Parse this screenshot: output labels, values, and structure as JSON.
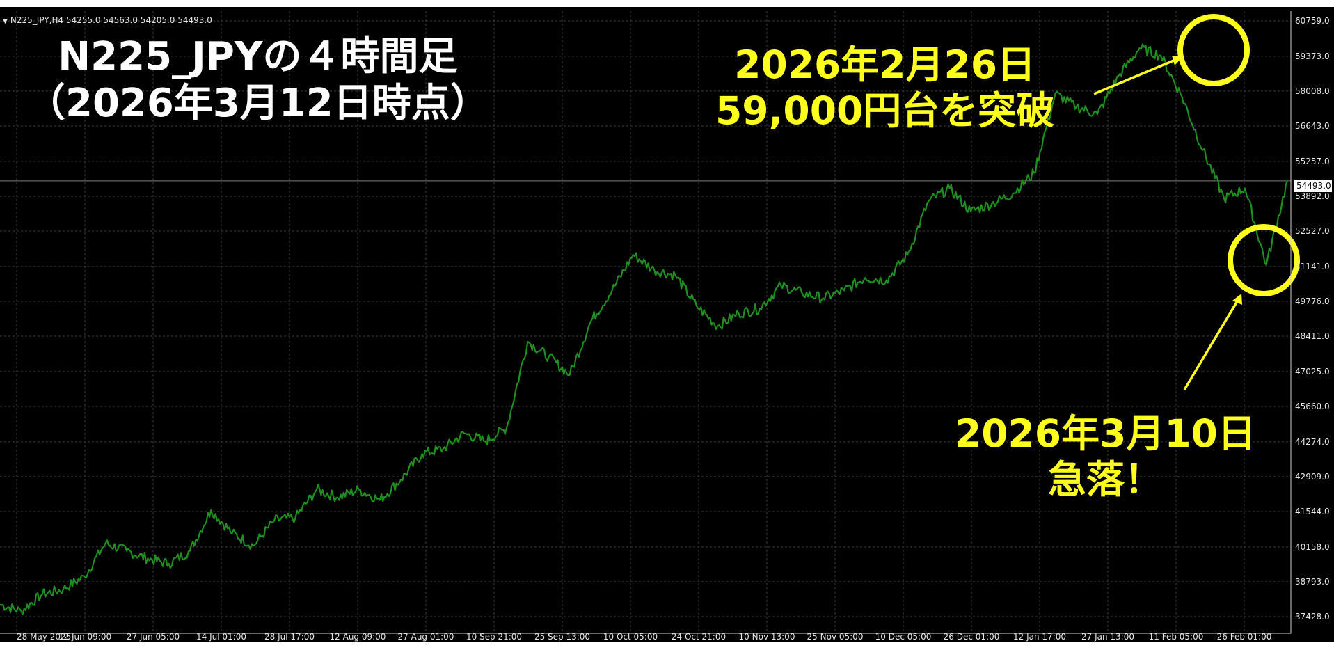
{
  "header": {
    "symbol_line": "N225_JPY,H4  54255.0 54563.0 54205.0 54493.0"
  },
  "title": {
    "line1": "N225_JPYの４時間足",
    "line2": "（2026年3月12日時点）"
  },
  "annotations": {
    "peak": {
      "line1": "2026年2月26日",
      "line2": "59,000円台を突破"
    },
    "drop": {
      "line1": "2026年3月10日",
      "line2": "急落！"
    }
  },
  "current_price_label": "54493.0",
  "colors": {
    "background": "#000000",
    "grid": "#3a3a3a",
    "line": "#1f8f1f",
    "highlight": "#ffff1e",
    "title": "#ffffff",
    "axis_text": "#e6e6e6"
  },
  "chart_data": {
    "type": "line",
    "title": "",
    "xlabel": "",
    "ylabel": "",
    "grid": true,
    "ylim": [
      37000,
      60900
    ],
    "y_ticks": [
      "60759.0",
      "59373.0",
      "58008.0",
      "56643.0",
      "55257.0",
      "53892.0",
      "52527.0",
      "51141.0",
      "49776.0",
      "48411.0",
      "47025.0",
      "45660.0",
      "44274.0",
      "42909.0",
      "41544.0",
      "40158.0",
      "38793.0",
      "37428.0"
    ],
    "x_ticks": [
      "28 May 2025",
      "12 Jun 09:00",
      "27 Jun 05:00",
      "14 Jul 01:00",
      "28 Jul 17:00",
      "12 Aug 09:00",
      "27 Aug 01:00",
      "10 Sep 21:00",
      "25 Sep 13:00",
      "10 Oct 05:00",
      "24 Oct 21:00",
      "10 Nov 13:00",
      "25 Nov 05:00",
      "10 Dec 05:00",
      "26 Dec 01:00",
      "12 Jan 17:00",
      "27 Jan 13:00",
      "11 Feb 05:00",
      "26 Feb 01:00"
    ],
    "series": [
      {
        "x": [
          "28 May 2025",
          "3 Jun 2025",
          "8 Jun 2025",
          "12 Jun 09:00",
          "17 Jun 2025",
          "21 Jun 2025",
          "27 Jun 05:00",
          "3 Jul 2025",
          "8 Jul 2025",
          "14 Jul 01:00",
          "18 Jul 2025",
          "23 Jul 2025",
          "28 Jul 17:00",
          "2 Aug 2025",
          "7 Aug 2025",
          "12 Aug 09:00",
          "17 Aug 2025",
          "22 Aug 2025",
          "27 Aug 01:00",
          "1 Sep 2025",
          "5 Sep 2025",
          "10 Sep 21:00",
          "15 Sep 2025",
          "20 Sep 2025",
          "25 Sep 13:00",
          "30 Sep 2025",
          "5 Oct 2025",
          "10 Oct 05:00",
          "15 Oct 2025",
          "20 Oct 2025",
          "24 Oct 21:00",
          "30 Oct 2025",
          "5 Nov 2025",
          "10 Nov 13:00",
          "15 Nov 2025",
          "20 Nov 2025",
          "25 Nov 05:00",
          "30 Nov 2025",
          "5 Dec 2025",
          "10 Dec 05:00",
          "15 Dec 2025",
          "20 Dec 2025",
          "26 Dec 01:00",
          "1 Jan 2026",
          "6 Jan 2026",
          "12 Jan 17:00",
          "17 Jan 2026",
          "22 Jan 2026",
          "27 Jan 13:00",
          "1 Feb 2026",
          "6 Feb 2026",
          "11 Feb 05:00",
          "16 Feb 2026",
          "21 Feb 2026",
          "26 Feb 01:00",
          "28 Feb 2026",
          "2 Mar 2026",
          "4 Mar 2026",
          "6 Mar 2026",
          "8 Mar 2026",
          "10 Mar 2026",
          "12 Mar 2026"
        ],
        "values": [
          37900,
          37650,
          38300,
          38500,
          39000,
          40300,
          40000,
          39700,
          39500,
          40000,
          41600,
          40700,
          40200,
          41200,
          41300,
          42400,
          42100,
          42400,
          42000,
          42800,
          43800,
          44000,
          44600,
          44300,
          44800,
          48200,
          47600,
          46900,
          49000,
          50200,
          51600,
          51000,
          50800,
          49600,
          48800,
          49300,
          49500,
          50400,
          50100,
          49900,
          50200,
          50700,
          50600,
          51600,
          53700,
          54200,
          53300,
          53600,
          54000,
          54800,
          57900,
          57400,
          57100,
          58600,
          59700,
          59400,
          57800,
          55700,
          53800,
          54200,
          51200,
          54493
        ]
      }
    ]
  }
}
